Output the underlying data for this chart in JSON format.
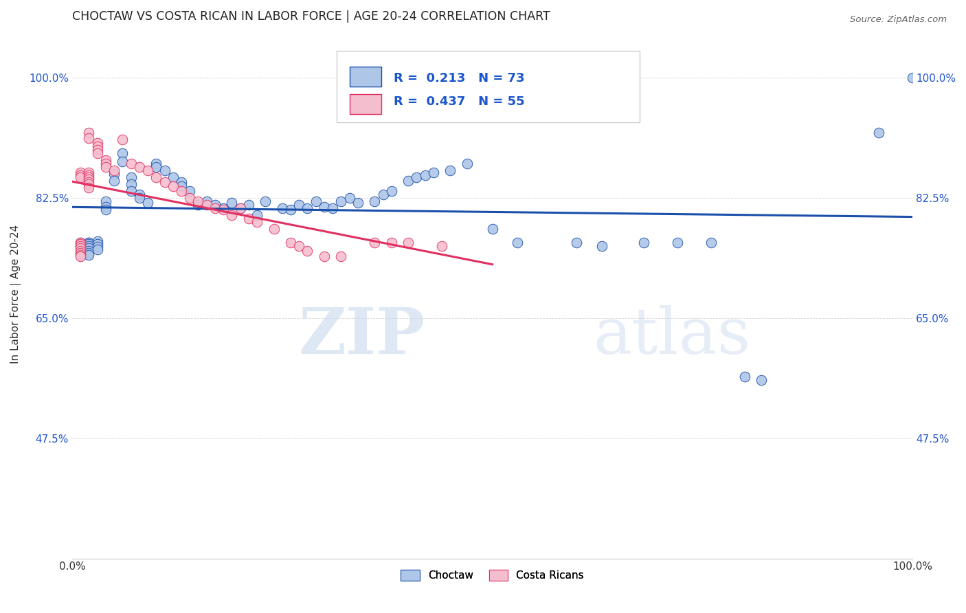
{
  "title": "CHOCTAW VS COSTA RICAN IN LABOR FORCE | AGE 20-24 CORRELATION CHART",
  "source": "Source: ZipAtlas.com",
  "ylabel": "In Labor Force | Age 20-24",
  "xlim": [
    0.0,
    1.0
  ],
  "ylim": [
    0.3,
    1.07
  ],
  "yticks": [
    0.475,
    0.65,
    0.825,
    1.0
  ],
  "ytick_labels": [
    "47.5%",
    "65.0%",
    "82.5%",
    "100.0%"
  ],
  "xticks": [
    0.0,
    0.2,
    0.4,
    0.6,
    0.8,
    1.0
  ],
  "xtick_labels": [
    "0.0%",
    "",
    "",
    "",
    "",
    "100.0%"
  ],
  "legend_labels": [
    "Choctaw",
    "Costa Ricans"
  ],
  "r_blue": 0.213,
  "n_blue": 73,
  "r_pink": 0.437,
  "n_pink": 55,
  "blue_color": "#aec6e8",
  "pink_color": "#f5bece",
  "line_blue": "#1a4faa",
  "line_pink": "#e03060",
  "watermark_zip": "ZIP",
  "watermark_atlas": "atlas",
  "blue_scatter_x": [
    0.01,
    0.01,
    0.02,
    0.02,
    0.02,
    0.02,
    0.02,
    0.02,
    0.02,
    0.02,
    0.03,
    0.03,
    0.03,
    0.03,
    0.04,
    0.04,
    0.04,
    0.05,
    0.05,
    0.06,
    0.06,
    0.07,
    0.07,
    0.07,
    0.08,
    0.08,
    0.09,
    0.1,
    0.1,
    0.11,
    0.12,
    0.13,
    0.13,
    0.14,
    0.15,
    0.16,
    0.17,
    0.18,
    0.19,
    0.2,
    0.21,
    0.22,
    0.23,
    0.25,
    0.26,
    0.27,
    0.28,
    0.29,
    0.3,
    0.31,
    0.32,
    0.33,
    0.34,
    0.36,
    0.37,
    0.38,
    0.4,
    0.41,
    0.42,
    0.43,
    0.45,
    0.47,
    0.5,
    0.53,
    0.6,
    0.63,
    0.68,
    0.72,
    0.76,
    0.8,
    0.82,
    0.96,
    1.0
  ],
  "blue_scatter_y": [
    0.76,
    0.755,
    0.76,
    0.76,
    0.758,
    0.755,
    0.752,
    0.748,
    0.745,
    0.742,
    0.762,
    0.758,
    0.754,
    0.75,
    0.82,
    0.812,
    0.808,
    0.86,
    0.85,
    0.89,
    0.878,
    0.855,
    0.845,
    0.835,
    0.83,
    0.825,
    0.818,
    0.875,
    0.87,
    0.865,
    0.855,
    0.848,
    0.842,
    0.835,
    0.815,
    0.82,
    0.815,
    0.81,
    0.818,
    0.81,
    0.815,
    0.8,
    0.82,
    0.81,
    0.808,
    0.815,
    0.81,
    0.82,
    0.812,
    0.81,
    0.82,
    0.825,
    0.818,
    0.82,
    0.83,
    0.835,
    0.85,
    0.855,
    0.858,
    0.862,
    0.865,
    0.875,
    0.78,
    0.76,
    0.76,
    0.755,
    0.76,
    0.76,
    0.76,
    0.565,
    0.56,
    0.92,
    1.0
  ],
  "pink_scatter_x": [
    0.01,
    0.01,
    0.01,
    0.01,
    0.01,
    0.01,
    0.01,
    0.01,
    0.01,
    0.01,
    0.01,
    0.02,
    0.02,
    0.02,
    0.02,
    0.02,
    0.02,
    0.02,
    0.02,
    0.02,
    0.03,
    0.03,
    0.03,
    0.03,
    0.04,
    0.04,
    0.04,
    0.05,
    0.06,
    0.07,
    0.08,
    0.09,
    0.1,
    0.11,
    0.12,
    0.13,
    0.14,
    0.15,
    0.16,
    0.17,
    0.18,
    0.19,
    0.2,
    0.21,
    0.22,
    0.24,
    0.26,
    0.27,
    0.28,
    0.3,
    0.32,
    0.36,
    0.38,
    0.4,
    0.44
  ],
  "pink_scatter_y": [
    0.76,
    0.758,
    0.755,
    0.752,
    0.748,
    0.745,
    0.742,
    0.74,
    0.862,
    0.858,
    0.855,
    0.862,
    0.858,
    0.855,
    0.852,
    0.848,
    0.845,
    0.84,
    0.92,
    0.912,
    0.905,
    0.9,
    0.895,
    0.89,
    0.88,
    0.875,
    0.87,
    0.865,
    0.91,
    0.875,
    0.87,
    0.865,
    0.855,
    0.848,
    0.842,
    0.835,
    0.825,
    0.82,
    0.815,
    0.81,
    0.808,
    0.8,
    0.81,
    0.795,
    0.79,
    0.78,
    0.76,
    0.755,
    0.748,
    0.74,
    0.74,
    0.76,
    0.76,
    0.76,
    0.755
  ]
}
